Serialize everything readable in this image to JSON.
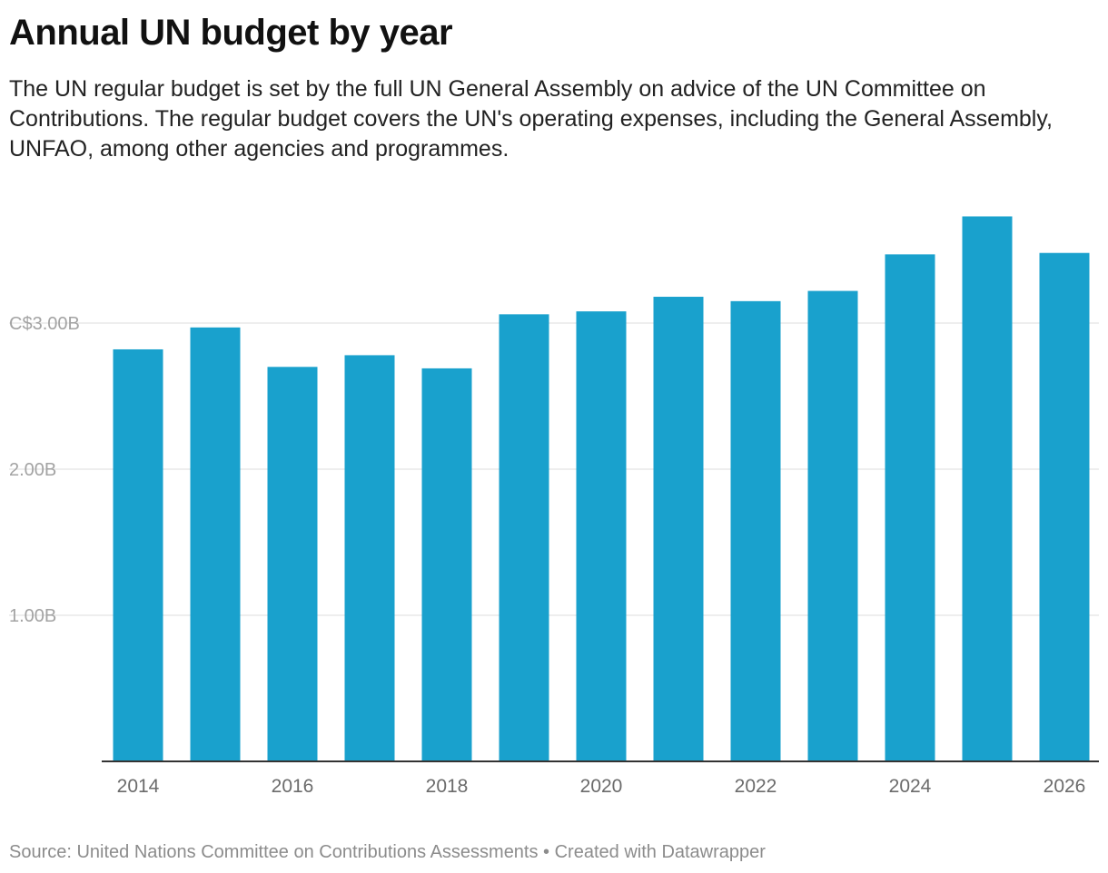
{
  "chart_data": {
    "type": "bar",
    "title": "Annual UN budget by year",
    "subtitle": "The UN regular budget is set by the full UN General Assembly on advice of the UN Committee on Contributions. The regular budget covers the UN's operating expenses, including the General Assembly, UNFAO, among other agencies and programmes.",
    "categories": [
      "2014",
      "2015",
      "2016",
      "2017",
      "2018",
      "2019",
      "2020",
      "2021",
      "2022",
      "2023",
      "2024",
      "2025",
      "2026"
    ],
    "values": [
      2.82,
      2.97,
      2.7,
      2.78,
      2.69,
      3.06,
      3.08,
      3.18,
      3.15,
      3.22,
      3.47,
      3.73,
      3.48
    ],
    "unit": "C$ billions",
    "xlabel": "",
    "ylabel": "",
    "ylim": [
      0,
      3.73
    ],
    "y_ticks": [
      {
        "value": 1,
        "label": "1.00B"
      },
      {
        "value": 2,
        "label": "2.00B"
      },
      {
        "value": 3,
        "label": "C$3.00B"
      }
    ],
    "x_tick_labels": [
      "2014",
      "2016",
      "2018",
      "2020",
      "2022",
      "2024",
      "2026"
    ],
    "grid": true,
    "legend": "none",
    "colors": {
      "bar": "#19a1cd",
      "grid": "#e3e3e3",
      "baseline": "#333333"
    }
  },
  "footer": {
    "source": "Source: United Nations Committee on Contributions Assessments • Created with Datawrapper"
  }
}
